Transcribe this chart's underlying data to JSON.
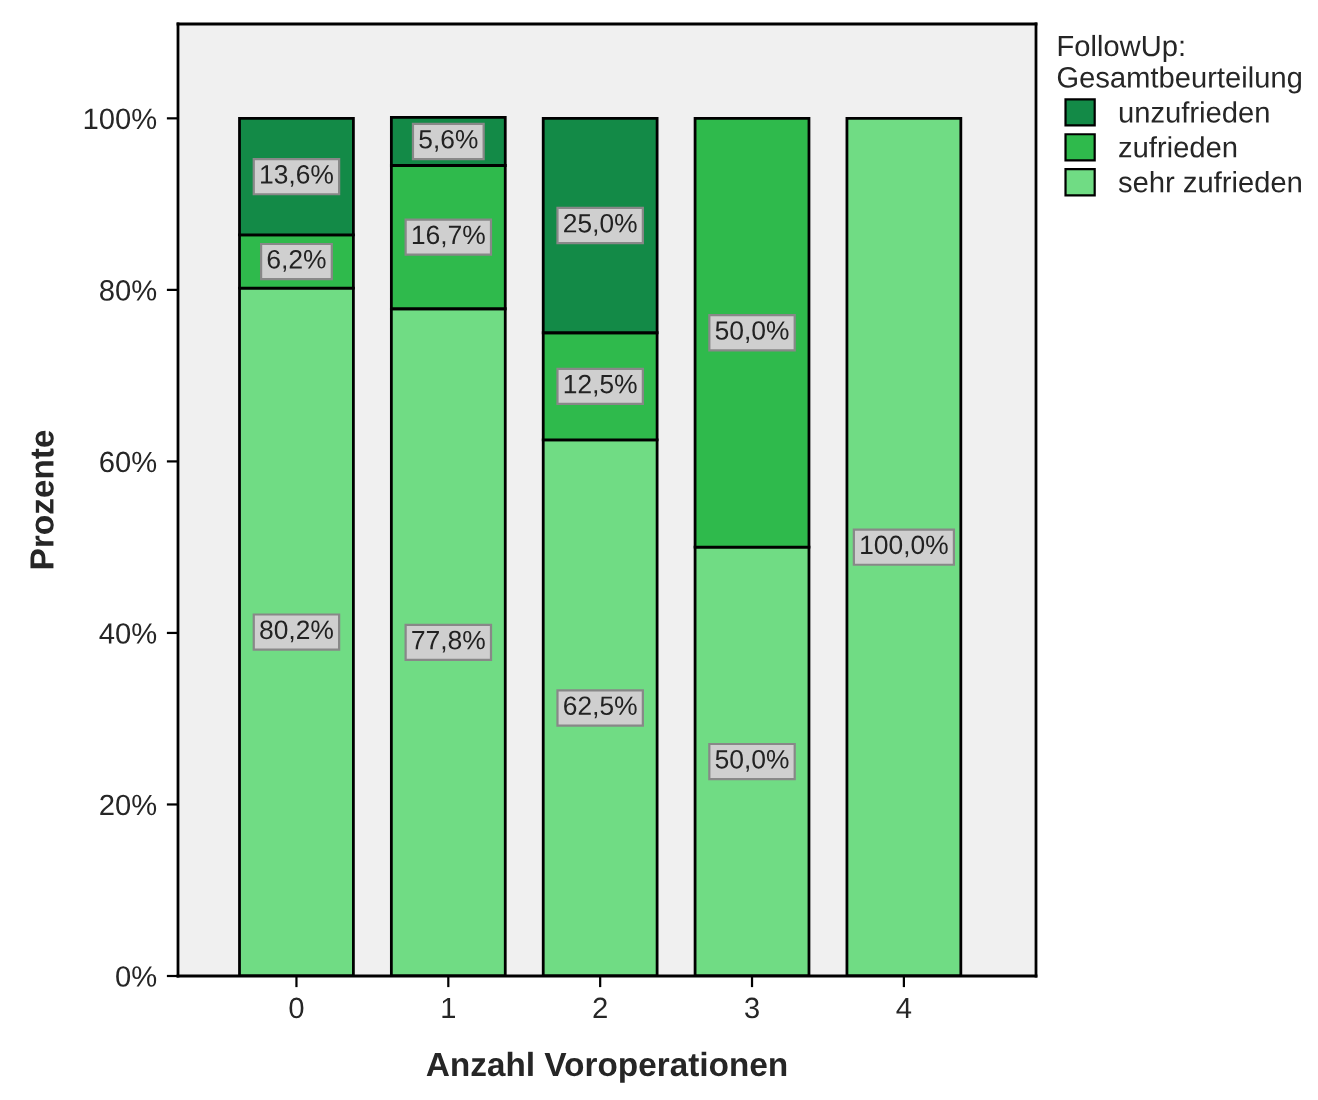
{
  "chart_data": {
    "type": "bar",
    "stacked": true,
    "xlabel": "Anzahl Voroperationen",
    "ylabel": "Prozente",
    "legend_title": "FollowUp:\nGesamtbeurteilung",
    "legend": "right",
    "categories": [
      "0",
      "1",
      "2",
      "3",
      "4"
    ],
    "ylim": [
      0,
      111
    ],
    "yticks": [
      {
        "value": 0,
        "label": "0%"
      },
      {
        "value": 20,
        "label": "20%"
      },
      {
        "value": 40,
        "label": "40%"
      },
      {
        "value": 60,
        "label": "60%"
      },
      {
        "value": 80,
        "label": "80%"
      },
      {
        "value": 100,
        "label": "100%"
      }
    ],
    "grid": false,
    "series": [
      {
        "name": "sehr zufrieden",
        "color": "#70dc84",
        "values": [
          80.2,
          77.8,
          62.5,
          50.0,
          100.0
        ],
        "value_labels": [
          "80,2%",
          "77,8%",
          "62,5%",
          "50,0%",
          "100,0%"
        ]
      },
      {
        "name": "zufrieden",
        "color": "#2fba4c",
        "values": [
          6.2,
          16.7,
          12.5,
          50.0,
          null
        ],
        "value_labels": [
          "6,2%",
          "16,7%",
          "12,5%",
          "50,0%",
          null
        ]
      },
      {
        "name": "unzufrieden",
        "color": "#138a47",
        "values": [
          13.6,
          5.6,
          25.0,
          null,
          null
        ],
        "value_labels": [
          "13,6%",
          "5,6%",
          "25,0%",
          null,
          null
        ]
      }
    ]
  }
}
